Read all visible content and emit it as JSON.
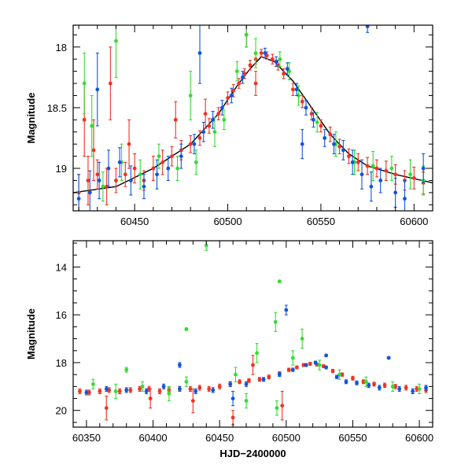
{
  "colors": {
    "red": "#ee3322",
    "green": "#33dd33",
    "blue": "#1155dd",
    "model": "#000000"
  },
  "chart_data": [
    {
      "type": "scatter",
      "panel": "top",
      "xlabel": "",
      "ylabel": "Magnitude",
      "xlim": [
        60417,
        60610
      ],
      "ylim": [
        19.35,
        17.82
      ],
      "y_inverted": true,
      "x_ticks": [
        60450,
        60500,
        60550,
        60600
      ],
      "y_ticks": [
        18,
        18.5,
        19
      ],
      "model_curve": {
        "x": [
          60417,
          60440,
          60460,
          60480,
          60495,
          60505,
          60512,
          60518,
          60525,
          60535,
          60545,
          60555,
          60565,
          60575,
          60590,
          60610
        ],
        "y": [
          19.2,
          19.15,
          19.0,
          18.8,
          18.55,
          18.32,
          18.18,
          18.08,
          18.12,
          18.28,
          18.5,
          18.72,
          18.88,
          18.98,
          19.05,
          19.12
        ]
      },
      "series": [
        {
          "color": "red",
          "x": [
            60420,
            60425,
            60430,
            60435,
            60440,
            60445,
            60450,
            60455,
            60460,
            60465,
            60470,
            60475,
            60480,
            60485,
            60490,
            60495,
            60500,
            60503,
            60506,
            60509,
            60512,
            60515,
            60518,
            60521,
            60524,
            60527,
            60530,
            60535,
            60540,
            60545,
            60550,
            60555,
            60560,
            60565,
            60570,
            60575,
            60580,
            60585,
            60590,
            60595,
            60600,
            60605,
            60423,
            60428,
            60437,
            60447,
            60472,
            60488,
            60510,
            60515
          ],
          "y": [
            19.2,
            19.1,
            19.05,
            19.15,
            19.1,
            19.05,
            19.0,
            19.1,
            19.0,
            18.95,
            18.9,
            18.85,
            18.8,
            18.75,
            18.65,
            18.55,
            18.42,
            18.36,
            18.3,
            18.22,
            18.15,
            18.1,
            18.05,
            18.07,
            18.1,
            18.15,
            18.22,
            18.35,
            18.45,
            18.55,
            18.65,
            18.72,
            18.82,
            18.9,
            18.95,
            18.98,
            19.0,
            19.02,
            19.05,
            19.1,
            19.08,
            19.12,
            18.6,
            18.85,
            18.3,
            18.8,
            18.6,
            18.55,
            17.9,
            18.3
          ],
          "err": [
            0.15,
            0.2,
            0.12,
            0.15,
            0.1,
            0.1,
            0.12,
            0.08,
            0.1,
            0.1,
            0.08,
            0.08,
            0.07,
            0.06,
            0.06,
            0.05,
            0.05,
            0.05,
            0.04,
            0.04,
            0.04,
            0.04,
            0.03,
            0.03,
            0.04,
            0.04,
            0.04,
            0.05,
            0.05,
            0.05,
            0.05,
            0.06,
            0.06,
            0.06,
            0.07,
            0.07,
            0.07,
            0.08,
            0.08,
            0.08,
            0.09,
            0.09,
            0.3,
            0.25,
            0.3,
            0.2,
            0.15,
            0.12,
            0.1,
            0.1
          ]
        },
        {
          "color": "green",
          "x": [
            60423,
            60427,
            60433,
            60443,
            60453,
            60463,
            60473,
            60483,
            60493,
            60498,
            60505,
            60510,
            60528,
            60533,
            60538,
            60548,
            60558,
            60568,
            60578,
            60588,
            60598,
            60605,
            60440,
            60480,
            60515
          ],
          "y": [
            18.3,
            18.65,
            19.15,
            18.95,
            19.05,
            18.9,
            19.0,
            18.95,
            18.7,
            18.6,
            18.2,
            17.9,
            18.1,
            18.2,
            18.4,
            18.62,
            18.8,
            18.95,
            18.98,
            19.0,
            19.05,
            19.1,
            17.95,
            18.4,
            18.05
          ],
          "err": [
            0.25,
            0.25,
            0.12,
            0.15,
            0.12,
            0.1,
            0.1,
            0.1,
            0.12,
            0.08,
            0.08,
            0.1,
            0.06,
            0.07,
            0.08,
            0.08,
            0.1,
            0.1,
            0.12,
            0.1,
            0.12,
            0.12,
            0.3,
            0.2,
            0.12
          ]
        },
        {
          "color": "blue",
          "x": [
            60420,
            60426,
            60431,
            60436,
            60442,
            60448,
            60455,
            60462,
            60468,
            60475,
            60482,
            60487,
            60492,
            60497,
            60502,
            60508,
            60520,
            60526,
            60532,
            60537,
            60542,
            60546,
            60552,
            60557,
            60562,
            60567,
            60572,
            60577,
            60582,
            60590,
            60595,
            60605,
            60430,
            60540,
            60575,
            60485
          ],
          "y": [
            19.25,
            19.2,
            19.1,
            19.0,
            18.95,
            19.1,
            19.15,
            19.05,
            19.0,
            18.9,
            18.8,
            18.7,
            18.6,
            18.5,
            18.4,
            18.25,
            18.05,
            18.12,
            18.18,
            18.35,
            18.5,
            18.6,
            18.75,
            18.8,
            18.85,
            18.95,
            19.05,
            19.15,
            19.1,
            19.2,
            19.25,
            19.0,
            18.35,
            18.8,
            17.83,
            18.05
          ],
          "err": [
            0.2,
            0.18,
            0.15,
            0.15,
            0.12,
            0.12,
            0.1,
            0.12,
            0.1,
            0.1,
            0.08,
            0.08,
            0.07,
            0.06,
            0.06,
            0.05,
            0.04,
            0.04,
            0.05,
            0.05,
            0.06,
            0.06,
            0.07,
            0.08,
            0.08,
            0.1,
            0.12,
            0.12,
            0.1,
            0.12,
            0.15,
            0.12,
            0.3,
            0.12,
            0.05,
            0.25
          ]
        }
      ]
    },
    {
      "type": "scatter",
      "panel": "bottom",
      "xlabel": "HJD−2400000",
      "ylabel": "Magnitude",
      "xlim": [
        60340,
        60610
      ],
      "ylim": [
        20.7,
        12.9
      ],
      "y_inverted": true,
      "x_ticks": [
        60350,
        60400,
        60450,
        60500,
        60550,
        60600
      ],
      "y_ticks": [
        14,
        16,
        18,
        20
      ],
      "series": [
        {
          "color": "red",
          "x": [
            60345,
            60352,
            60360,
            60367,
            60375,
            60383,
            60390,
            60397,
            60405,
            60412,
            60420,
            60428,
            60435,
            60442,
            60450,
            60458,
            60465,
            60472,
            60480,
            60487,
            60495,
            60502,
            60508,
            60513,
            60518,
            60523,
            60528,
            60535,
            60542,
            60550,
            60558,
            60566,
            60574,
            60582,
            60590,
            60598,
            60605,
            60365,
            60398,
            60430,
            60475,
            60497,
            60460
          ],
          "y": [
            19.2,
            19.25,
            19.2,
            19.15,
            19.2,
            19.15,
            19.1,
            19.1,
            19.2,
            19.15,
            19.1,
            19.1,
            19.05,
            19.1,
            19.0,
            18.9,
            18.8,
            18.75,
            18.7,
            18.6,
            18.45,
            18.3,
            18.2,
            18.1,
            18.05,
            18.08,
            18.15,
            18.35,
            18.5,
            18.65,
            18.8,
            18.9,
            18.95,
            19.0,
            19.05,
            19.1,
            19.15,
            19.9,
            19.5,
            19.6,
            18.1,
            19.8,
            20.3
          ],
          "err": [
            0.1,
            0.1,
            0.1,
            0.1,
            0.1,
            0.1,
            0.1,
            0.1,
            0.1,
            0.1,
            0.1,
            0.1,
            0.1,
            0.1,
            0.1,
            0.1,
            0.08,
            0.08,
            0.08,
            0.08,
            0.07,
            0.07,
            0.06,
            0.06,
            0.06,
            0.06,
            0.06,
            0.07,
            0.07,
            0.08,
            0.08,
            0.08,
            0.09,
            0.09,
            0.1,
            0.1,
            0.1,
            0.5,
            0.4,
            0.5,
            0.4,
            0.6,
            0.3
          ]
        },
        {
          "color": "green",
          "x": [
            60355,
            60372,
            60392,
            60412,
            60425,
            60440,
            60462,
            60478,
            60492,
            60505,
            60512,
            60525,
            60540,
            60560,
            60580,
            60600,
            60495,
            60493,
            60380,
            60425,
            60470
          ],
          "y": [
            18.9,
            19.2,
            19.0,
            19.3,
            18.8,
            13.1,
            18.5,
            17.6,
            16.3,
            17.8,
            17.0,
            18.1,
            18.5,
            18.8,
            19.0,
            19.1,
            14.6,
            19.9,
            18.3,
            16.6,
            19.6
          ],
          "err": [
            0.2,
            0.3,
            0.2,
            0.3,
            0.2,
            0.2,
            0.3,
            0.4,
            0.4,
            0.3,
            0.4,
            0.2,
            0.2,
            0.2,
            0.2,
            0.2,
            0.05,
            0.3,
            0.1,
            0.05,
            0.3
          ]
        },
        {
          "color": "blue",
          "x": [
            60350,
            60365,
            60380,
            60395,
            60408,
            60420,
            60432,
            60445,
            60458,
            60470,
            60483,
            60495,
            60505,
            60515,
            60522,
            60530,
            60538,
            60545,
            60553,
            60562,
            60570,
            60577,
            60585,
            60595,
            60605,
            60500,
            60420,
            60460,
            60530
          ],
          "y": [
            19.25,
            19.1,
            19.15,
            19.2,
            19.0,
            19.1,
            19.2,
            19.15,
            18.9,
            18.9,
            18.7,
            18.5,
            18.3,
            18.1,
            18.0,
            18.2,
            18.6,
            18.8,
            18.85,
            18.95,
            19.05,
            17.8,
            19.1,
            19.2,
            19.05,
            15.8,
            18.1,
            19.5,
            17.7
          ],
          "err": [
            0.1,
            0.1,
            0.1,
            0.1,
            0.1,
            0.1,
            0.1,
            0.1,
            0.1,
            0.1,
            0.08,
            0.08,
            0.07,
            0.06,
            0.06,
            0.06,
            0.07,
            0.08,
            0.08,
            0.09,
            0.1,
            0.05,
            0.1,
            0.1,
            0.1,
            0.2,
            0.1,
            0.3,
            0.05
          ]
        }
      ]
    }
  ]
}
